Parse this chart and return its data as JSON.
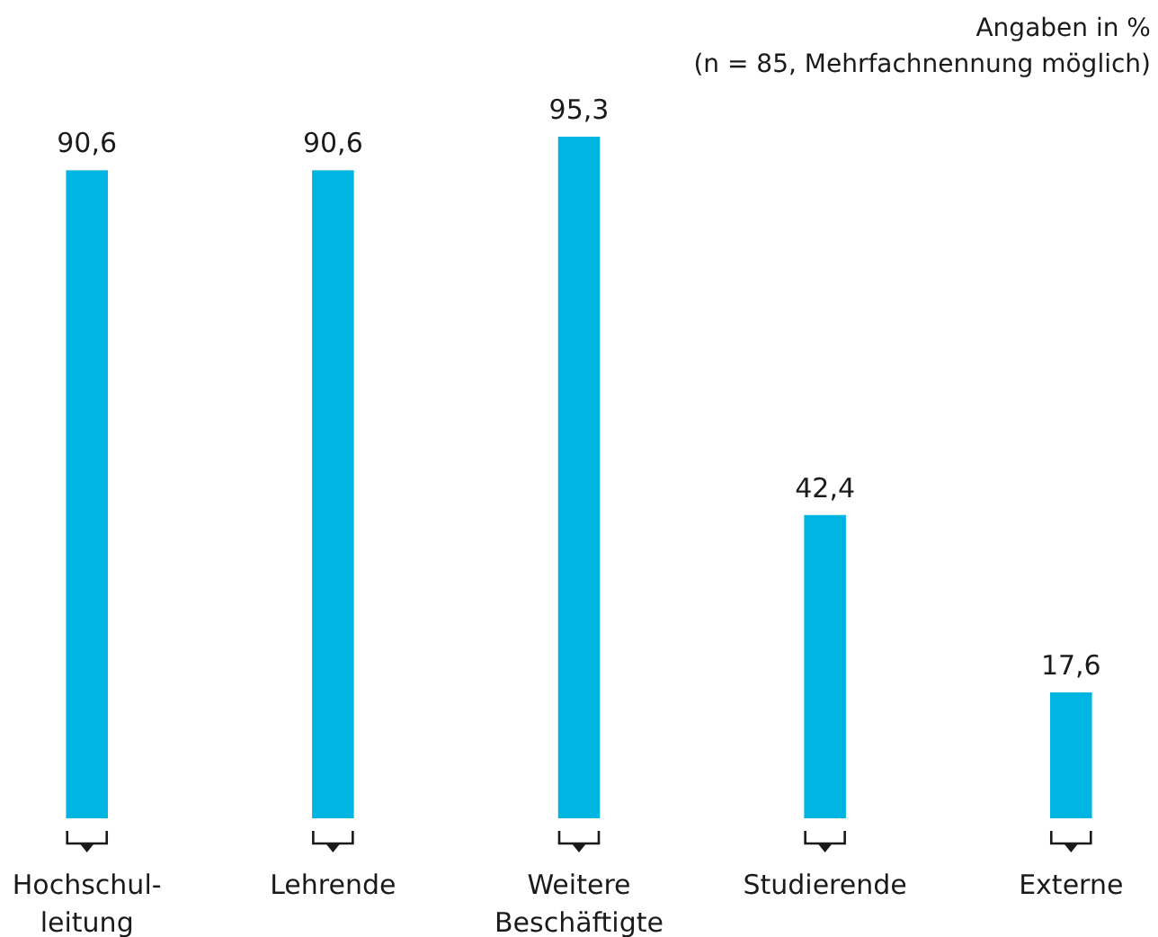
{
  "chart_data": {
    "type": "bar",
    "annotations": [
      "Angaben in %",
      "(n = 85, Mehrfachnennung möglich)"
    ],
    "categories": [
      "Hochschul-\nleitung",
      "Lehrende",
      "Weitere\nBeschäftigte",
      "Studierende",
      "Externe"
    ],
    "values": [
      90.6,
      90.6,
      95.3,
      42.4,
      17.6
    ],
    "value_labels": [
      "90,6",
      "90,6",
      "95,3",
      "42,4",
      "17,6"
    ],
    "color": "#00b5e2"
  }
}
